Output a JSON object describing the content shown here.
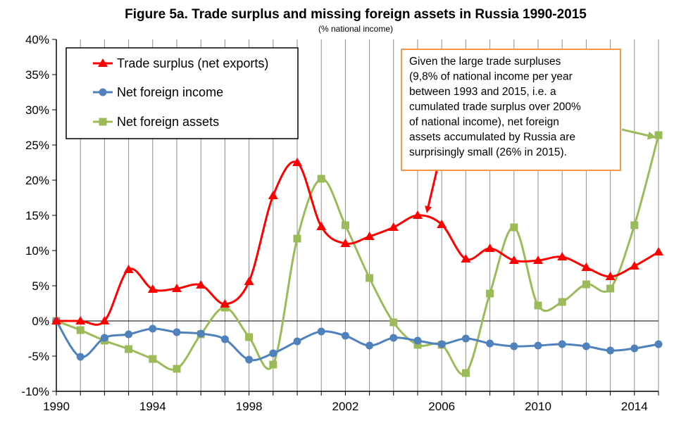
{
  "chart_data": {
    "type": "line",
    "title": "Figure 5a. Trade surplus and missing foreign assets in Russia 1990-2015",
    "subtitle": "(% national income)",
    "xlabel": "",
    "ylabel": "",
    "x": [
      1990,
      1991,
      1992,
      1993,
      1994,
      1995,
      1996,
      1997,
      1998,
      1999,
      2000,
      2001,
      2002,
      2003,
      2004,
      2005,
      2006,
      2007,
      2008,
      2009,
      2010,
      2011,
      2012,
      2013,
      2014,
      2015
    ],
    "xlim": [
      1990,
      2015
    ],
    "ylim": [
      -10,
      40
    ],
    "x_tick_labels": [
      "1990",
      "1994",
      "1998",
      "2002",
      "2006",
      "2010",
      "2014"
    ],
    "x_tick_values": [
      1990,
      1994,
      1998,
      2002,
      2006,
      2010,
      2014
    ],
    "y_tick_labels": [
      "-10%",
      "-5%",
      "0%",
      "5%",
      "10%",
      "15%",
      "20%",
      "25%",
      "30%",
      "35%",
      "40%"
    ],
    "y_tick_values": [
      -10,
      -5,
      0,
      5,
      10,
      15,
      20,
      25,
      30,
      35,
      40
    ],
    "grid": "vertical",
    "legend_position": "top-left",
    "series": [
      {
        "name": "Trade surplus (net exports)",
        "color": "#ff0000",
        "marker": "triangle",
        "values": [
          0,
          0,
          0,
          7.3,
          4.5,
          4.6,
          5.1,
          2.4,
          5.6,
          17.8,
          22.5,
          13.4,
          11.0,
          12.0,
          13.3,
          15.0,
          13.7,
          8.8,
          10.3,
          8.6,
          8.6,
          9.1,
          7.6,
          6.3,
          7.8,
          9.8
        ]
      },
      {
        "name": "Net foreign income",
        "color": "#4f81bd",
        "marker": "circle",
        "values": [
          0,
          -5.1,
          -2.4,
          -1.9,
          -1.1,
          -1.6,
          -1.8,
          -2.6,
          -5.5,
          -4.6,
          -2.9,
          -1.5,
          -2.1,
          -3.5,
          -2.4,
          -2.8,
          -3.3,
          -2.5,
          -3.2,
          -3.6,
          -3.5,
          -3.3,
          -3.6,
          -4.2,
          -3.9,
          -3.3
        ]
      },
      {
        "name": "Net foreign assets",
        "color": "#9bbb59",
        "marker": "square",
        "values": [
          0,
          -1.3,
          -2.8,
          -4.0,
          -5.4,
          -6.8,
          -1.9,
          1.9,
          -2.3,
          -6.2,
          11.7,
          20.2,
          13.6,
          6.1,
          -0.2,
          -3.4,
          -3.4,
          -7.4,
          3.9,
          13.3,
          2.2,
          2.7,
          5.2,
          4.6,
          13.6,
          26.4
        ]
      }
    ],
    "annotation": {
      "lines": [
        "Given the large trade surpluses",
        "(9,8% of national income per year",
        "between 1993 and 2015, i.e. a",
        "cumulated trade surplus over 200%",
        "of national income), net foreign",
        "assets accumulated by Russia are",
        "surprisingly small (26% in 2015)."
      ],
      "border_color": "#f79646",
      "arrow_color": "#ff0000",
      "arrow2_color": "#9bbb59"
    }
  }
}
